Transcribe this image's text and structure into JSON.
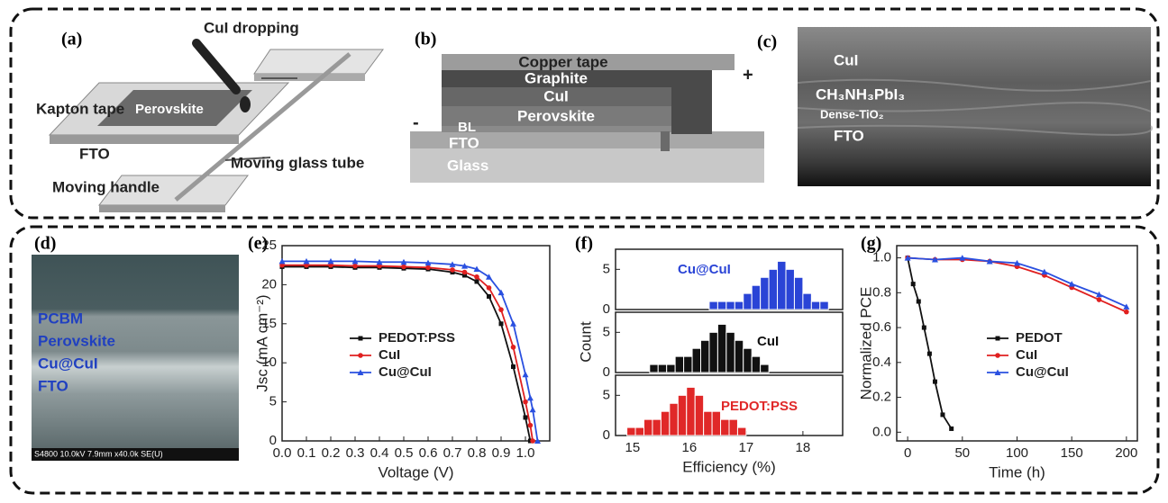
{
  "panel_labels": [
    "(a)",
    "(b)",
    "(c)",
    "(d)",
    "(e)",
    "(f)",
    "(g)"
  ],
  "diagram_a": {
    "labels": [
      "CuI dropping",
      "Kapton tape",
      "Perovskite",
      "FTO",
      "Moving glass tube",
      "Moving handle"
    ]
  },
  "diagram_b": {
    "layers": [
      "Copper tape",
      "Graphite",
      "CuI",
      "Perovskite",
      "BL",
      "FTO",
      "Glass"
    ],
    "plus": "+",
    "minus": "-"
  },
  "image_c": {
    "labels": [
      "CuI",
      "CH₃NH₃PbI₃",
      "Dense-TiO₂",
      "FTO"
    ]
  },
  "image_d": {
    "labels": [
      "PCBM",
      "Perovskite",
      "Cu@CuI",
      "FTO"
    ],
    "footer": "S4800 10.0kV 7.9mm x40.0k SE(U)"
  },
  "chart_data": [
    {
      "type": "line",
      "x_label": "Voltage (V)",
      "y_label": "Jsc (mA cm⁻²)",
      "xlim": [
        0,
        1.1
      ],
      "ylim": [
        0,
        25
      ],
      "xticks": [
        {
          "value": 0,
          "label": "0.0"
        },
        0.1,
        0.2,
        0.3,
        0.4,
        0.5,
        0.6,
        0.7,
        0.8,
        0.9,
        {
          "value": 1,
          "label": "1.0"
        }
      ],
      "yticks": [
        0,
        5,
        10,
        15,
        20,
        25
      ],
      "series": [
        {
          "name": "PEDOT:PSS",
          "color": "#111111",
          "marker": "square",
          "x": [
            0,
            0.1,
            0.2,
            0.3,
            0.4,
            0.5,
            0.6,
            0.7,
            0.75,
            0.8,
            0.85,
            0.9,
            0.95,
            1.0,
            1.02
          ],
          "values": [
            22.3,
            22.3,
            22.3,
            22.2,
            22.2,
            22.1,
            22.0,
            21.6,
            21.2,
            20.4,
            18.5,
            15.0,
            9.5,
            3.0,
            0.0
          ]
        },
        {
          "name": "CuI",
          "color": "#e02020",
          "marker": "circle",
          "x": [
            0,
            0.1,
            0.2,
            0.3,
            0.4,
            0.5,
            0.6,
            0.7,
            0.75,
            0.8,
            0.85,
            0.9,
            0.95,
            1.0,
            1.02,
            1.03
          ],
          "values": [
            22.5,
            22.5,
            22.5,
            22.4,
            22.4,
            22.3,
            22.2,
            21.9,
            21.6,
            21.0,
            19.6,
            16.8,
            12.0,
            5.0,
            2.0,
            0.0
          ]
        },
        {
          "name": "Cu@CuI",
          "color": "#2a50e0",
          "marker": "triangle",
          "x": [
            0,
            0.1,
            0.2,
            0.3,
            0.4,
            0.5,
            0.6,
            0.7,
            0.75,
            0.8,
            0.85,
            0.9,
            0.95,
            1.0,
            1.02,
            1.03,
            1.05
          ],
          "values": [
            23.0,
            23.0,
            23.0,
            23.0,
            22.9,
            22.9,
            22.8,
            22.6,
            22.4,
            22.0,
            21.0,
            19.0,
            15.0,
            8.5,
            5.5,
            4.0,
            0.0
          ]
        }
      ]
    },
    {
      "type": "histogram",
      "name": "Cu@CuI",
      "color": "#2a44d6",
      "xlim": [
        14.7,
        18.7
      ],
      "ylim": [
        0,
        7.5
      ],
      "yticks": [
        0,
        5
      ],
      "bins": [
        16.35,
        16.5,
        16.65,
        16.8,
        16.95,
        17.1,
        17.25,
        17.4,
        17.55,
        17.7,
        17.85,
        18.0,
        18.15,
        18.3,
        18.45
      ],
      "values": [
        1,
        1,
        1,
        1,
        2,
        3,
        4,
        5,
        6,
        5,
        4,
        2,
        1,
        1
      ]
    },
    {
      "type": "histogram",
      "name": "CuI",
      "color": "#111111",
      "xlim": [
        14.7,
        18.7
      ],
      "ylim": [
        0,
        7.5
      ],
      "yticks": [
        0,
        5
      ],
      "y_label": "Count",
      "bins": [
        15.3,
        15.45,
        15.6,
        15.75,
        15.9,
        16.05,
        16.2,
        16.35,
        16.5,
        16.65,
        16.8,
        16.95,
        17.1,
        17.25,
        17.4
      ],
      "values": [
        1,
        1,
        1,
        2,
        2,
        3,
        4,
        5,
        6,
        5,
        4,
        3,
        2,
        1
      ]
    },
    {
      "type": "histogram",
      "name": "PEDOT:PSS",
      "color": "#e02828",
      "xlim": [
        14.7,
        18.7
      ],
      "ylim": [
        0,
        7.5
      ],
      "yticks": [
        0,
        5
      ],
      "xticks": [
        15,
        16,
        17,
        18
      ],
      "x_label": "Efficiency (%)",
      "bins": [
        14.9,
        15.05,
        15.2,
        15.35,
        15.5,
        15.65,
        15.8,
        15.95,
        16.1,
        16.25,
        16.4,
        16.55,
        16.7,
        16.85,
        17.0
      ],
      "values": [
        1,
        1,
        2,
        2,
        3,
        4,
        5,
        6,
        5,
        3,
        3,
        2,
        2,
        1
      ]
    },
    {
      "type": "line",
      "x_label": "Time (h)",
      "y_label": "Normalized PCE",
      "xlim": [
        -10,
        210
      ],
      "ylim": [
        -0.05,
        1.07
      ],
      "xticks": [
        0,
        50,
        100,
        150,
        200
      ],
      "yticks": [
        {
          "value": 0,
          "label": "0.0"
        },
        0.2,
        0.4,
        0.6,
        0.8,
        {
          "value": 1,
          "label": "1.0"
        }
      ],
      "series": [
        {
          "name": "PEDOT",
          "color": "#111111",
          "marker": "square",
          "x": [
            0,
            5,
            10,
            15,
            20,
            25,
            32,
            40
          ],
          "values": [
            1.0,
            0.85,
            0.75,
            0.6,
            0.45,
            0.29,
            0.1,
            0.02
          ]
        },
        {
          "name": "CuI",
          "color": "#e02020",
          "marker": "circle",
          "x": [
            0,
            25,
            50,
            75,
            100,
            125,
            150,
            175,
            200
          ],
          "values": [
            1.0,
            0.99,
            0.99,
            0.98,
            0.95,
            0.9,
            0.83,
            0.76,
            0.69
          ]
        },
        {
          "name": "Cu@CuI",
          "color": "#2a50e0",
          "marker": "triangle",
          "x": [
            0,
            25,
            50,
            75,
            100,
            125,
            150,
            175,
            200
          ],
          "values": [
            1.0,
            0.99,
            1.0,
            0.98,
            0.97,
            0.92,
            0.85,
            0.79,
            0.72
          ]
        }
      ]
    }
  ]
}
